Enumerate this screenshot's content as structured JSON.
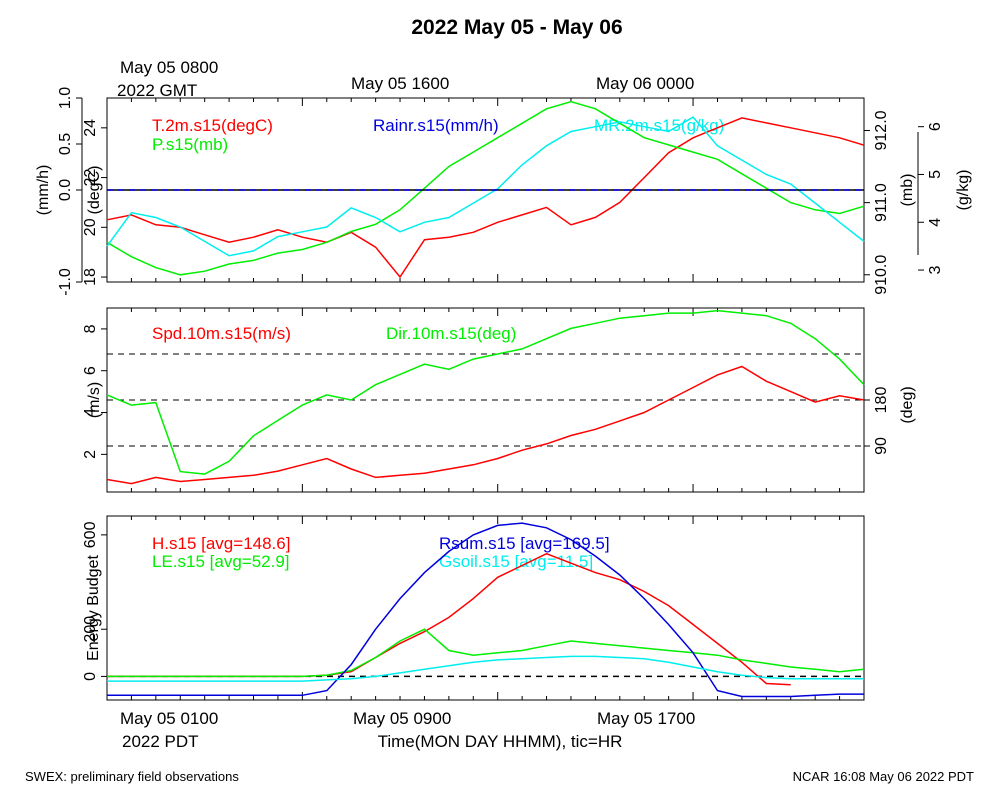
{
  "title": "2022 May 05 - May 06",
  "top_time_labels": {
    "first_line1": "May 05 0800",
    "first_line2": "2022 GMT",
    "second": "May 05 1600",
    "third": "May 06 0000"
  },
  "bottom_time_labels": {
    "first": "May 05 0100",
    "second": "May 05 0900",
    "third": "May 05 1700",
    "tz": "2022 PDT"
  },
  "xlabel": "Time(MON DAY HHMM), tic=HR",
  "footer_left": "SWEX: preliminary field observations",
  "footer_right": "NCAR 16:08 May 06 2022 PDT",
  "colors": {
    "red": "#ff0000",
    "green": "#00ee00",
    "blue": "#0000dd",
    "cyan": "#00eeee",
    "black": "#000000"
  },
  "chart_data": [
    {
      "type": "line",
      "panel": "top",
      "x_unit": "hours since May 05 0000 PDT",
      "xlim": [
        1,
        32
      ],
      "axes": {
        "rain": {
          "label": "(mm/h)",
          "ylim": [
            -1.0,
            1.0
          ],
          "ticks": [
            "-1.0",
            "0.0",
            "0.5",
            "1.0"
          ]
        },
        "temp": {
          "label": "(degC)",
          "ylim": [
            17.8,
            25.2
          ],
          "ticks": [
            "18",
            "20",
            "22",
            "24"
          ]
        },
        "pres": {
          "label": "(mb)",
          "ylim": [
            909.9,
            912.45
          ],
          "ticks": [
            "910.0",
            "911.0",
            "912.0"
          ]
        },
        "mr": {
          "label": "(g/kg)",
          "ylim": [
            2.75,
            6.6
          ],
          "ticks": [
            "3",
            "4",
            "5",
            "6"
          ]
        }
      },
      "series": [
        {
          "name": "T.2m.s15(degC)",
          "axis": "temp",
          "color": "red",
          "x": [
            1,
            2,
            3,
            4,
            5,
            6,
            7,
            8,
            9,
            10,
            11,
            12,
            13,
            14,
            15,
            16,
            17,
            18,
            19,
            20,
            21,
            22,
            23,
            24,
            25,
            26,
            27,
            28,
            29,
            30,
            31,
            32
          ],
          "y": [
            20.3,
            20.5,
            20.1,
            20.0,
            19.7,
            19.4,
            19.6,
            19.9,
            19.6,
            19.4,
            19.8,
            19.2,
            18.0,
            19.5,
            19.6,
            19.8,
            20.2,
            20.5,
            20.8,
            20.1,
            20.4,
            21.0,
            22.0,
            23.0,
            23.6,
            24.0,
            24.4,
            24.2,
            24.0,
            23.8,
            23.6,
            23.3
          ]
        },
        {
          "name": "P.s15(mb)",
          "axis": "pres",
          "color": "green",
          "x": [
            1,
            2,
            3,
            4,
            5,
            6,
            7,
            8,
            9,
            10,
            11,
            12,
            13,
            14,
            15,
            16,
            17,
            18,
            19,
            20,
            21,
            22,
            23,
            24,
            25,
            26,
            27,
            28,
            29,
            30,
            31,
            32
          ],
          "y": [
            910.45,
            910.25,
            910.1,
            910.0,
            910.05,
            910.15,
            910.2,
            910.3,
            910.35,
            910.45,
            910.6,
            910.7,
            910.9,
            911.2,
            911.5,
            911.7,
            911.9,
            912.1,
            912.3,
            912.4,
            912.3,
            912.1,
            911.9,
            911.8,
            911.7,
            911.6,
            911.4,
            911.2,
            911.0,
            910.9,
            910.85,
            910.95
          ]
        },
        {
          "name": "MR.2m.s15(g/kg)",
          "axis": "mr",
          "color": "cyan",
          "x": [
            1,
            2,
            3,
            4,
            5,
            6,
            7,
            8,
            9,
            10,
            11,
            12,
            13,
            14,
            15,
            16,
            17,
            18,
            19,
            20,
            21,
            22,
            23,
            24,
            25,
            26,
            27,
            28,
            29,
            30,
            31,
            32
          ],
          "y": [
            3.5,
            4.2,
            4.1,
            3.9,
            3.6,
            3.3,
            3.4,
            3.7,
            3.8,
            3.9,
            4.3,
            4.1,
            3.8,
            4.0,
            4.1,
            4.4,
            4.7,
            5.2,
            5.6,
            5.9,
            6.0,
            6.1,
            6.0,
            5.9,
            6.2,
            5.6,
            5.3,
            5.0,
            4.8,
            4.4,
            4.0,
            3.6
          ]
        },
        {
          "name": "Rainr.s15(mm/h)",
          "axis": "rain",
          "color": "blue",
          "x": [
            1,
            32
          ],
          "y": [
            0.0,
            0.0
          ]
        }
      ]
    },
    {
      "type": "line",
      "panel": "middle",
      "xlim": [
        1,
        32
      ],
      "axes": {
        "speed": {
          "label": "(m/s)",
          "ylim": [
            0.2,
            9.0
          ],
          "ticks": [
            "2",
            "4",
            "6",
            "8"
          ]
        },
        "dir": {
          "label": "(deg)",
          "ylim": [
            0,
            360
          ],
          "ticks": [
            "90",
            "180"
          ]
        }
      },
      "reference_lines_dir": [
        90,
        180,
        270
      ],
      "series": [
        {
          "name": "Spd.10m.s15(m/s)",
          "axis": "speed",
          "color": "red",
          "x": [
            1,
            2,
            3,
            4,
            5,
            6,
            7,
            8,
            9,
            10,
            11,
            12,
            13,
            14,
            15,
            16,
            17,
            18,
            19,
            20,
            21,
            22,
            23,
            24,
            25,
            26,
            27,
            28,
            29,
            30,
            31,
            32
          ],
          "y": [
            0.8,
            0.6,
            0.9,
            0.7,
            0.8,
            0.9,
            1.0,
            1.2,
            1.5,
            1.8,
            1.3,
            0.9,
            1.0,
            1.1,
            1.3,
            1.5,
            1.8,
            2.2,
            2.5,
            2.9,
            3.2,
            3.6,
            4.0,
            4.6,
            5.2,
            5.8,
            6.2,
            5.5,
            5.0,
            4.5,
            4.8,
            4.6
          ]
        },
        {
          "name": "Dir.10m.s15(deg)",
          "axis": "dir",
          "color": "green",
          "x": [
            1,
            2,
            3,
            4,
            5,
            6,
            7,
            8,
            9,
            10,
            11,
            12,
            13,
            14,
            15,
            16,
            17,
            18,
            19,
            20,
            21,
            22,
            23,
            24,
            25,
            26,
            27,
            28,
            29,
            30,
            31,
            32
          ],
          "y": [
            190,
            170,
            175,
            40,
            35,
            60,
            110,
            140,
            170,
            190,
            180,
            210,
            230,
            250,
            240,
            260,
            270,
            280,
            300,
            320,
            330,
            340,
            345,
            350,
            350,
            355,
            350,
            345,
            330,
            300,
            260,
            210
          ]
        }
      ]
    },
    {
      "type": "line",
      "panel": "bottom",
      "xlim": [
        1,
        32
      ],
      "ylabel": "Energy Budget",
      "ylim": [
        -100,
        680
      ],
      "ticks": [
        "0",
        "200",
        "600"
      ],
      "series": [
        {
          "name": "H.s15 [avg=148.6]",
          "color": "red",
          "x": [
            1,
            3,
            5,
            7,
            9,
            10,
            11,
            12,
            13,
            14,
            15,
            16,
            17,
            18,
            19,
            20,
            21,
            22,
            23,
            24,
            25,
            26,
            27,
            28,
            29
          ],
          "y": [
            0,
            0,
            0,
            0,
            0,
            5,
            20,
            80,
            140,
            190,
            250,
            330,
            420,
            470,
            520,
            480,
            440,
            410,
            360,
            300,
            220,
            140,
            60,
            -30,
            -35
          ]
        },
        {
          "name": "LE.s15 [avg=52.9]",
          "color": "green",
          "x": [
            1,
            3,
            5,
            7,
            9,
            10,
            11,
            12,
            13,
            14,
            15,
            16,
            17,
            18,
            19,
            20,
            21,
            22,
            23,
            24,
            25,
            26,
            27,
            28,
            29,
            30,
            31,
            32
          ],
          "y": [
            0,
            0,
            0,
            0,
            0,
            5,
            25,
            80,
            150,
            200,
            110,
            90,
            100,
            110,
            130,
            150,
            140,
            130,
            120,
            110,
            100,
            90,
            70,
            55,
            40,
            30,
            20,
            30
          ]
        },
        {
          "name": "Rsum.s15 [avg=169.5]",
          "color": "blue",
          "x": [
            1,
            3,
            5,
            7,
            9,
            10,
            11,
            12,
            13,
            14,
            15,
            16,
            17,
            18,
            19,
            20,
            21,
            22,
            23,
            24,
            25,
            26,
            27,
            28,
            29,
            30,
            31,
            32
          ],
          "y": [
            -80,
            -80,
            -80,
            -80,
            -80,
            -60,
            50,
            200,
            330,
            440,
            530,
            600,
            640,
            650,
            630,
            580,
            510,
            430,
            330,
            220,
            100,
            -60,
            -85,
            -85,
            -85,
            -80,
            -75,
            -75
          ]
        },
        {
          "name": "Gsoil.s15 [avg=11.5]",
          "color": "cyan",
          "x": [
            1,
            3,
            5,
            7,
            9,
            10,
            11,
            12,
            13,
            14,
            15,
            16,
            17,
            18,
            19,
            20,
            21,
            22,
            23,
            24,
            25,
            26,
            27,
            28,
            29,
            30,
            31,
            32
          ],
          "y": [
            -20,
            -20,
            -20,
            -20,
            -20,
            -15,
            -10,
            0,
            15,
            30,
            45,
            60,
            70,
            75,
            80,
            85,
            85,
            80,
            75,
            60,
            40,
            20,
            5,
            -5,
            -10,
            -10,
            -10,
            -10
          ]
        }
      ]
    }
  ]
}
